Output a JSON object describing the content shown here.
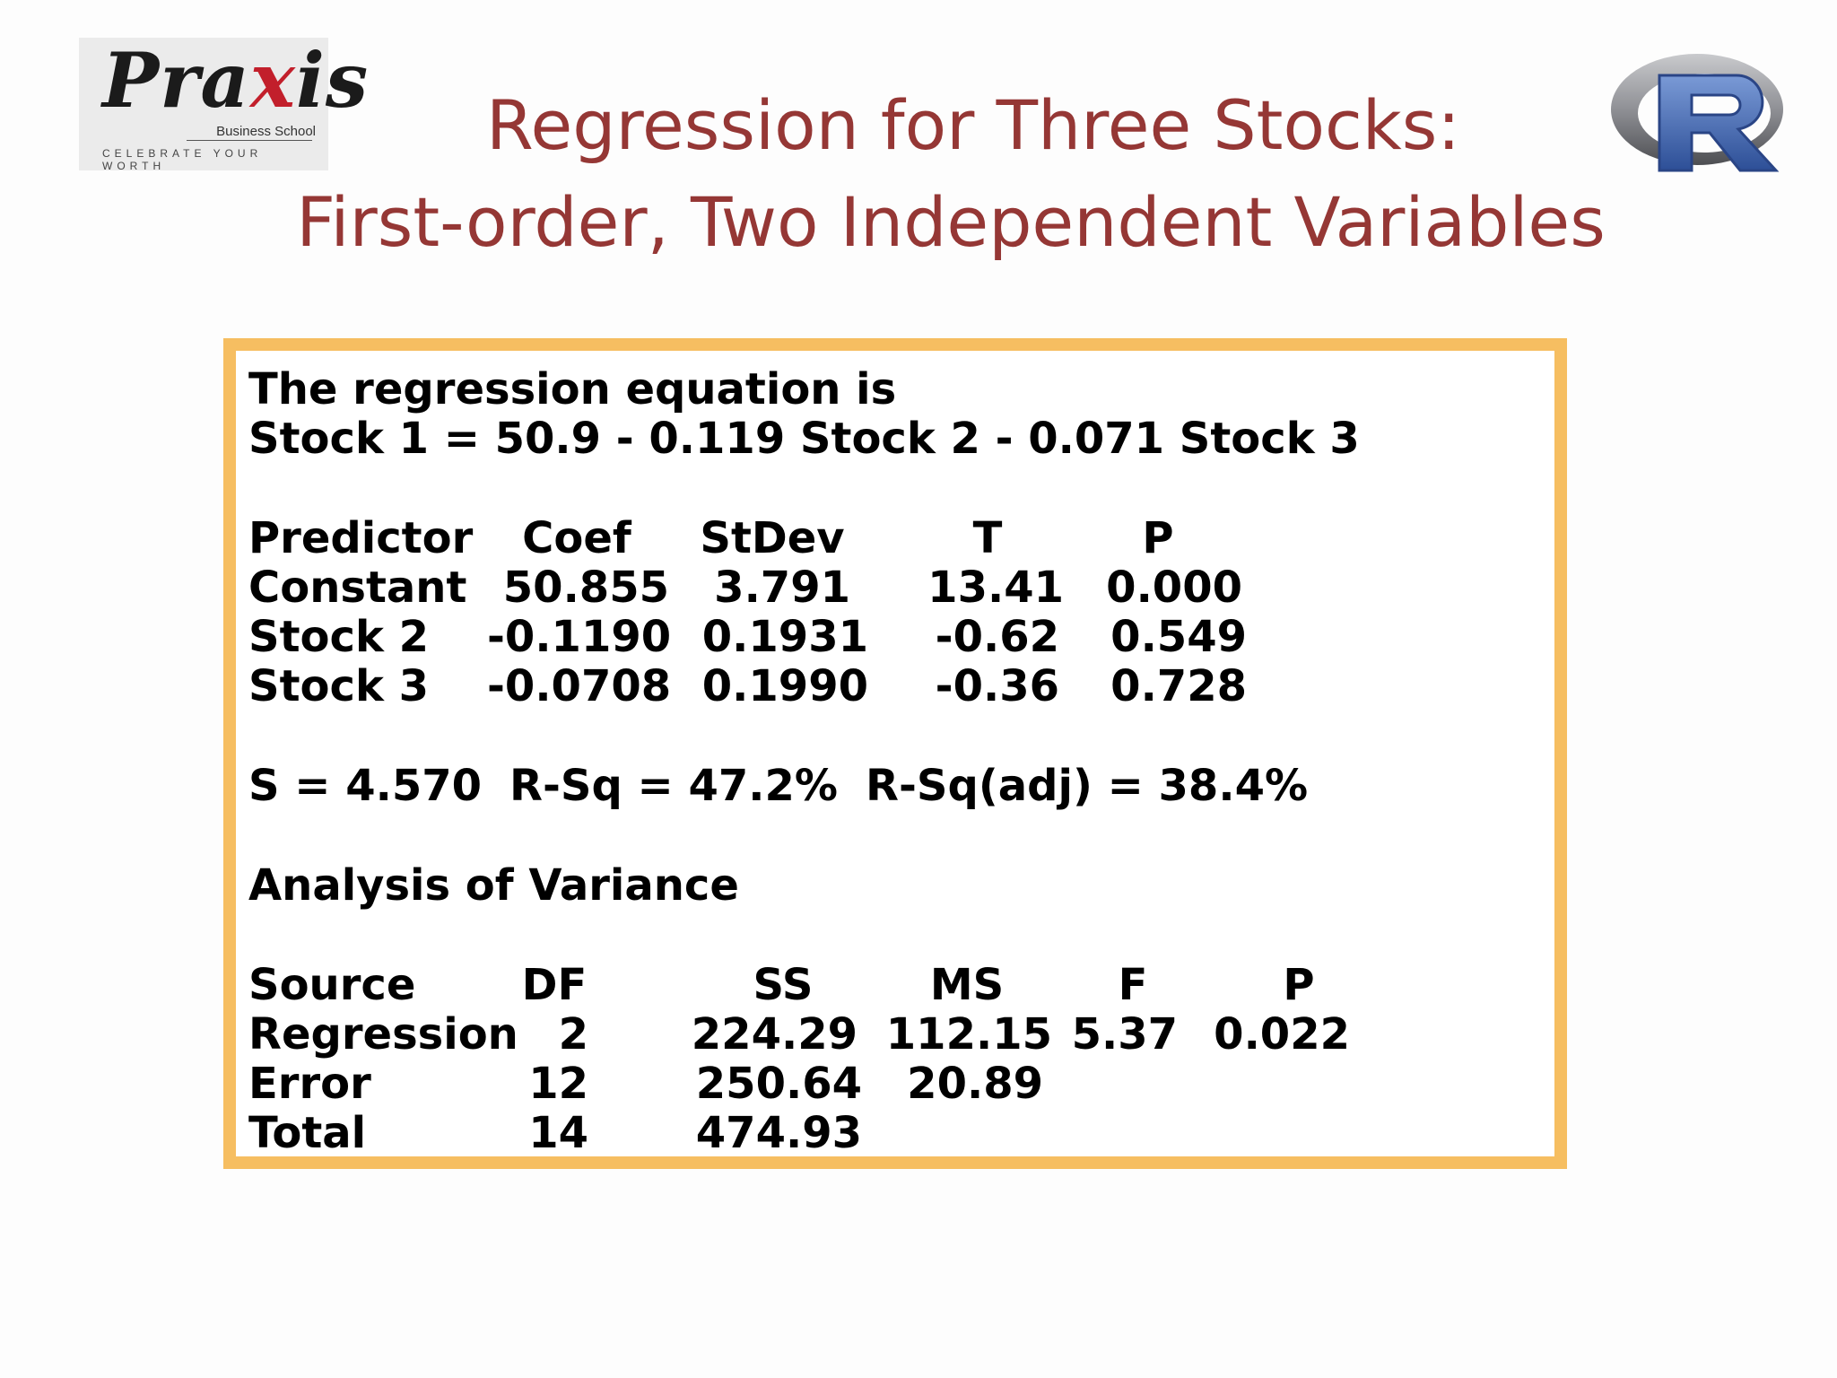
{
  "title": {
    "line1": "Regression for Three Stocks:",
    "line2": "First-order, Two Independent Variables"
  },
  "logos": {
    "praxis": {
      "wordmark_a": "Pra",
      "wordmark_b": "x",
      "wordmark_c": "is",
      "subtitle": "Business School",
      "tagline": "CELEBRATE YOUR WORTH"
    },
    "r_logo_letter": "R"
  },
  "colors": {
    "title": "#953735",
    "box_border": "#f6be61",
    "r_logo_blue": "#4a6fb5",
    "praxis_red": "#c21f2b"
  },
  "output": {
    "equation_heading": "The regression equation is",
    "equation": "Stock 1 = 50.9 - 0.119 Stock 2 - 0.071 Stock 3",
    "coef_table": {
      "headers": [
        "Predictor",
        "Coef",
        "StDev",
        "T",
        "P"
      ],
      "rows": [
        [
          "Constant",
          "50.855",
          "3.791",
          "13.41",
          "0.000"
        ],
        [
          "Stock 2",
          "-0.1190",
          "0.1931",
          "-0.62",
          "0.549"
        ],
        [
          "Stock 3",
          "-0.0708",
          "0.1990",
          "-0.36",
          "0.728"
        ]
      ]
    },
    "fit": {
      "s": "S = 4.570",
      "rsq": "R-Sq = 47.2%",
      "rsq_adj": "R-Sq(adj) = 38.4%"
    },
    "anova_heading": "Analysis of Variance",
    "anova_table": {
      "headers": [
        "Source",
        "DF",
        "SS",
        "MS",
        "F",
        "P"
      ],
      "rows": [
        [
          "Regression",
          "2",
          "224.29",
          "112.15",
          "5.37",
          "0.022"
        ],
        [
          "Error",
          "12",
          "250.64",
          "20.89",
          "",
          ""
        ],
        [
          "Total",
          "14",
          "474.93",
          "",
          "",
          ""
        ]
      ]
    }
  }
}
